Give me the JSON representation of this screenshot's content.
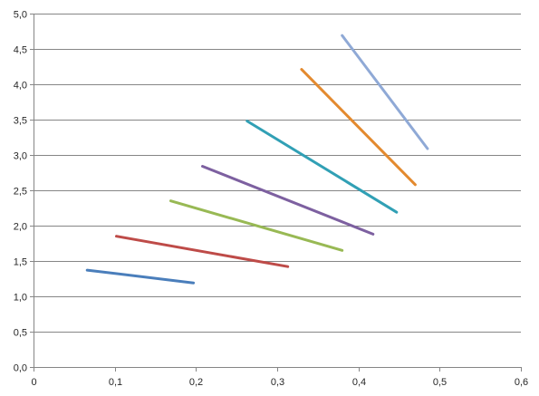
{
  "chart_data": {
    "type": "line",
    "title": "",
    "xlabel": "",
    "ylabel": "",
    "xlim": [
      0,
      0.6
    ],
    "ylim": [
      0,
      5.0
    ],
    "grid": {
      "horizontal": true,
      "vertical": false
    },
    "legend": "none",
    "x_ticks": [
      "0",
      "0,1",
      "0,2",
      "0,3",
      "0,4",
      "0,5",
      "0,6"
    ],
    "y_ticks": [
      "0,0",
      "0,5",
      "1,0",
      "1,5",
      "2,0",
      "2,5",
      "3,0",
      "3,5",
      "4,0",
      "4,5",
      "5,0"
    ],
    "series": [
      {
        "color": "#4a7ebb",
        "points": [
          [
            0.066,
            1.37
          ],
          [
            0.197,
            1.19
          ]
        ]
      },
      {
        "color": "#be4b48",
        "points": [
          [
            0.102,
            1.85
          ],
          [
            0.313,
            1.42
          ]
        ]
      },
      {
        "color": "#98b954",
        "points": [
          [
            0.169,
            2.35
          ],
          [
            0.38,
            1.65
          ]
        ]
      },
      {
        "color": "#7d60a0",
        "points": [
          [
            0.208,
            2.84
          ],
          [
            0.418,
            1.88
          ]
        ]
      },
      {
        "color": "#31a0b5",
        "points": [
          [
            0.263,
            3.48
          ],
          [
            0.447,
            2.19
          ]
        ]
      },
      {
        "color": "#e38a2f",
        "points": [
          [
            0.33,
            4.21
          ],
          [
            0.47,
            2.58
          ]
        ]
      },
      {
        "color": "#8fa9d6",
        "points": [
          [
            0.38,
            4.69
          ],
          [
            0.485,
            3.09
          ]
        ]
      }
    ]
  }
}
